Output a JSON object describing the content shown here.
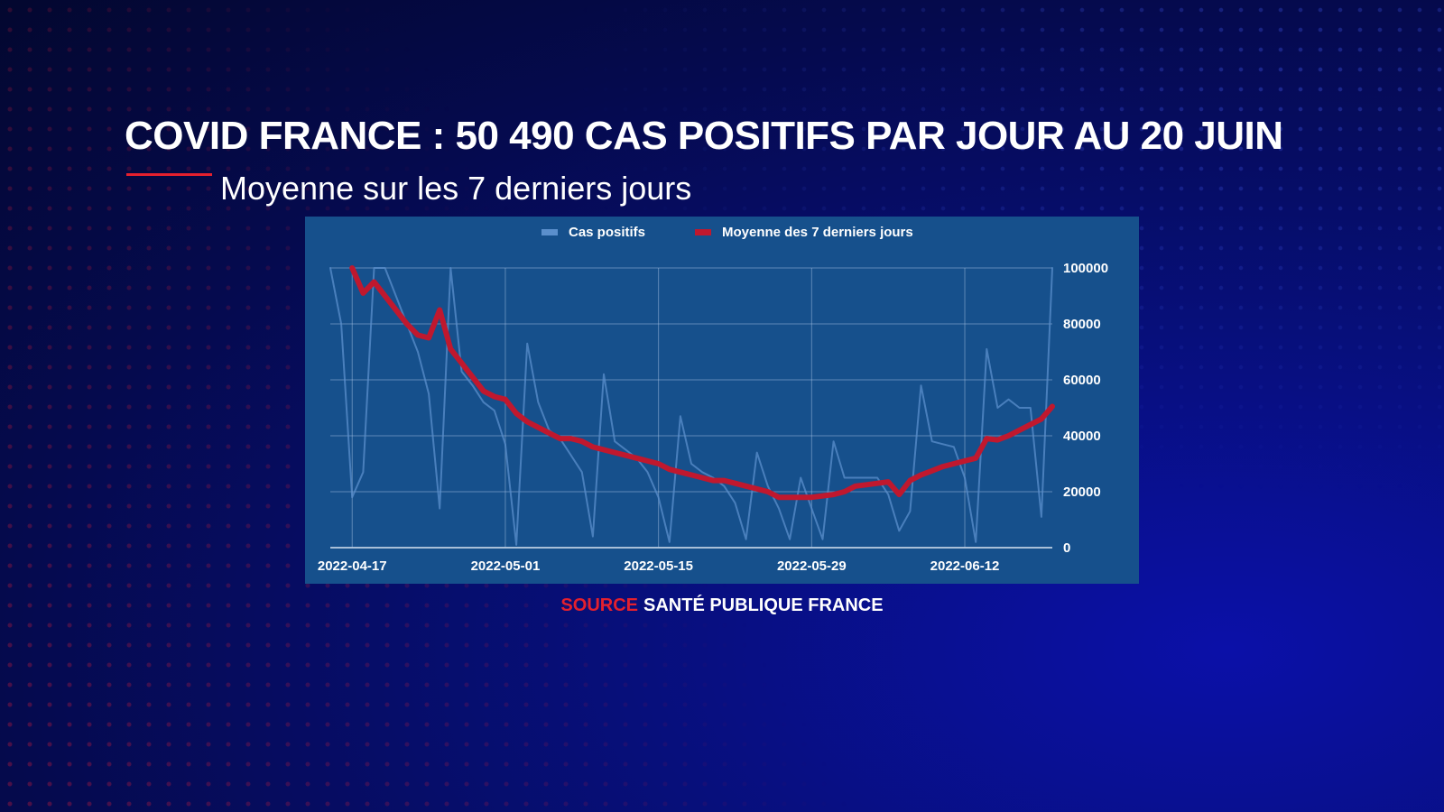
{
  "header": {
    "title": "COVID FRANCE : 50 490 CAS POSITIFS PAR JOUR AU 20 JUIN",
    "subtitle": "Moyenne sur les 7 derniers jours"
  },
  "source": {
    "label": "SOURCE",
    "text": "SANTÉ PUBLIQUE FRANCE"
  },
  "colors": {
    "daily": "#5b8fcc",
    "average": "#c0182e",
    "accent": "#e4202e",
    "panel": "#16508c"
  },
  "chart_data": {
    "type": "line",
    "title": "COVID FRANCE : 50 490 CAS POSITIFS PAR JOUR AU 20 JUIN",
    "xlabel": "",
    "ylabel": "",
    "x_range": [
      "2022-04-15",
      "2022-06-20"
    ],
    "ylim": [
      0,
      100000
    ],
    "y_ticks": [
      100000,
      80000,
      60000,
      40000,
      20000,
      0
    ],
    "x_ticks": [
      "2022-04-17",
      "2022-05-01",
      "2022-05-15",
      "2022-05-29",
      "2022-06-12"
    ],
    "grid": true,
    "legend_position": "top-center",
    "series": [
      {
        "name": "Cas positifs",
        "color": "#5b8fcc",
        "width": 2,
        "x": [
          "2022-04-15",
          "2022-04-16",
          "2022-04-17",
          "2022-04-18",
          "2022-04-19",
          "2022-04-20",
          "2022-04-21",
          "2022-04-22",
          "2022-04-23",
          "2022-04-24",
          "2022-04-25",
          "2022-04-26",
          "2022-04-27",
          "2022-04-28",
          "2022-04-29",
          "2022-04-30",
          "2022-05-01",
          "2022-05-02",
          "2022-05-03",
          "2022-05-04",
          "2022-05-05",
          "2022-05-06",
          "2022-05-07",
          "2022-05-08",
          "2022-05-09",
          "2022-05-10",
          "2022-05-11",
          "2022-05-12",
          "2022-05-13",
          "2022-05-14",
          "2022-05-15",
          "2022-05-16",
          "2022-05-17",
          "2022-05-18",
          "2022-05-19",
          "2022-05-20",
          "2022-05-21",
          "2022-05-22",
          "2022-05-23",
          "2022-05-24",
          "2022-05-25",
          "2022-05-26",
          "2022-05-27",
          "2022-05-28",
          "2022-05-29",
          "2022-05-30",
          "2022-05-31",
          "2022-06-01",
          "2022-06-02",
          "2022-06-03",
          "2022-06-04",
          "2022-06-05",
          "2022-06-06",
          "2022-06-07",
          "2022-06-08",
          "2022-06-09",
          "2022-06-10",
          "2022-06-11",
          "2022-06-12",
          "2022-06-13",
          "2022-06-14",
          "2022-06-15",
          "2022-06-16",
          "2022-06-17",
          "2022-06-18",
          "2022-06-19",
          "2022-06-20"
        ],
        "values": [
          100000,
          80000,
          18000,
          27000,
          100000,
          100000,
          90000,
          80000,
          70000,
          55000,
          14000,
          100000,
          63000,
          58000,
          52000,
          49000,
          37000,
          1000,
          73000,
          52000,
          42000,
          39000,
          33000,
          27000,
          4000,
          62000,
          38000,
          35000,
          32000,
          27000,
          18000,
          2000,
          47000,
          30000,
          27000,
          25000,
          22000,
          16000,
          3000,
          34000,
          22000,
          14000,
          3000,
          25000,
          14000,
          3000,
          38000,
          25000,
          25000,
          25000,
          25000,
          19000,
          6000,
          13000,
          58000,
          38000,
          37000,
          36000,
          25000,
          2000,
          71000,
          50000,
          53000,
          50000,
          50000,
          11000,
          100000
        ]
      },
      {
        "name": "Moyenne des 7 derniers jours",
        "color": "#c0182e",
        "width": 6,
        "x": [
          "2022-04-17",
          "2022-04-18",
          "2022-04-19",
          "2022-04-20",
          "2022-04-21",
          "2022-04-22",
          "2022-04-23",
          "2022-04-24",
          "2022-04-25",
          "2022-04-26",
          "2022-04-27",
          "2022-04-28",
          "2022-04-29",
          "2022-04-30",
          "2022-05-01",
          "2022-05-02",
          "2022-05-03",
          "2022-05-04",
          "2022-05-05",
          "2022-05-06",
          "2022-05-07",
          "2022-05-08",
          "2022-05-09",
          "2022-05-10",
          "2022-05-11",
          "2022-05-12",
          "2022-05-13",
          "2022-05-14",
          "2022-05-15",
          "2022-05-16",
          "2022-05-17",
          "2022-05-18",
          "2022-05-19",
          "2022-05-20",
          "2022-05-21",
          "2022-05-22",
          "2022-05-23",
          "2022-05-24",
          "2022-05-25",
          "2022-05-26",
          "2022-05-27",
          "2022-05-28",
          "2022-05-29",
          "2022-05-30",
          "2022-05-31",
          "2022-06-01",
          "2022-06-02",
          "2022-06-03",
          "2022-06-04",
          "2022-06-05",
          "2022-06-06",
          "2022-06-07",
          "2022-06-08",
          "2022-06-09",
          "2022-06-10",
          "2022-06-11",
          "2022-06-12",
          "2022-06-13",
          "2022-06-14",
          "2022-06-15",
          "2022-06-16",
          "2022-06-17",
          "2022-06-18",
          "2022-06-19",
          "2022-06-20"
        ],
        "values": [
          100000,
          91000,
          95000,
          90000,
          85000,
          80000,
          76000,
          75000,
          85000,
          71000,
          66000,
          61000,
          56000,
          54000,
          53000,
          48000,
          45000,
          43000,
          41000,
          39000,
          39000,
          38000,
          36000,
          35000,
          34000,
          33000,
          32000,
          31000,
          30000,
          28000,
          27000,
          26000,
          25000,
          24000,
          24000,
          23000,
          22000,
          21000,
          20000,
          18000,
          18000,
          18000,
          18000,
          18500,
          19000,
          20000,
          22000,
          22500,
          23000,
          23500,
          19000,
          24000,
          26000,
          27500,
          29000,
          30000,
          31000,
          32000,
          39000,
          38500,
          40000,
          42000,
          44000,
          46000,
          50490
        ]
      }
    ]
  }
}
